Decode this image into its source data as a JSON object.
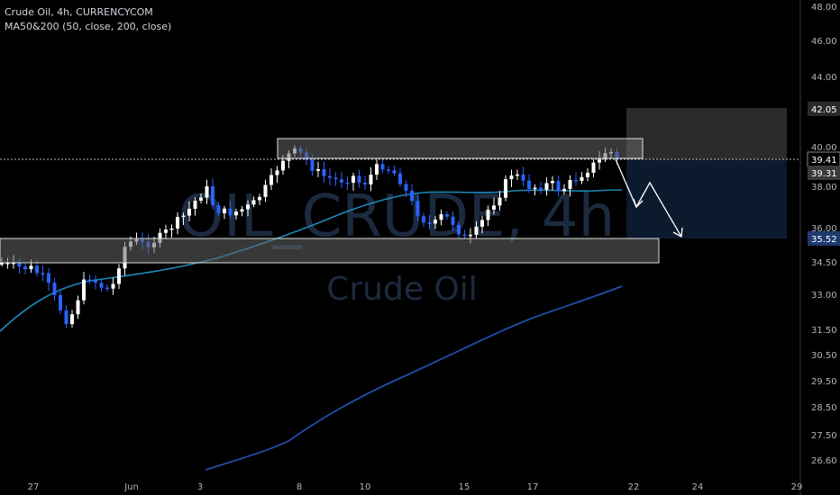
{
  "header": {
    "symbol_line": "Crude Oil, 4h, CURRENCYCOM",
    "indicator_line": "MA50&200 (50, close, 200, close)"
  },
  "watermark": {
    "title": "OIL_CRUDE, 4h",
    "subtitle": "Crude Oil"
  },
  "colors": {
    "background": "#000000",
    "candle_up": "#ffffff",
    "candle_down": "#2962ff",
    "ma50": "#1e88b8",
    "ma200": "#1f4fa8",
    "zone": "#5a5a5a",
    "projection_box": "#0c1a2e"
  },
  "price_axis": {
    "labels": [
      "48.00",
      "46.00",
      "44.00",
      "42.05",
      "40.00",
      "38.00",
      "36.00",
      "34.50",
      "33.00",
      "31.50",
      "30.50",
      "29.50",
      "28.50",
      "27.50",
      "26.60"
    ],
    "badges": [
      {
        "label": "42.05",
        "bg": "#2a2a2a",
        "fg": "#ffffff"
      },
      {
        "label": "39.41",
        "bg": "#000000",
        "fg": "#ffffff"
      },
      {
        "label": "39.31",
        "bg": "#3a3a3a",
        "fg": "#ffffff"
      },
      {
        "label": "35.52",
        "bg": "#1e3a6e",
        "fg": "#ffffff"
      }
    ]
  },
  "time_axis": {
    "labels": [
      "27",
      "Jun",
      "3",
      "8",
      "10",
      "15",
      "17",
      "22",
      "24",
      "29"
    ]
  },
  "zones": {
    "resistance": {
      "from": 39.41,
      "to": 40.55
    },
    "support": {
      "from": 34.45,
      "to": 35.52
    }
  },
  "last_price": 39.41,
  "chart_data": {
    "type": "candlestick",
    "symbol": "Crude Oil",
    "timeframe": "4h",
    "y_scale": "log",
    "ylim": [
      26.4,
      48.5
    ],
    "x_range": [
      "May 26",
      "Jun 29"
    ],
    "ma50_level": {
      "start": 31.6,
      "end": 38.0
    },
    "ma200_level": {
      "start": 26.5,
      "end": 33.4
    },
    "projection_targets": [
      39.31,
      35.52
    ]
  }
}
